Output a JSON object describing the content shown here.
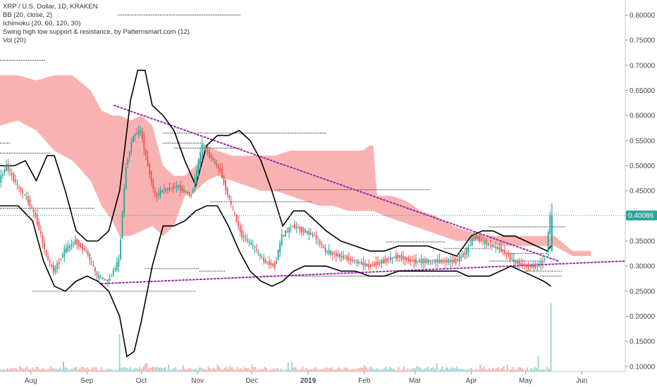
{
  "legend": {
    "line1": "XRP / U.S. Dollar, 1D, KRAKEN",
    "line2": "BB (20, close, 2)",
    "line3": "Ichimoku (20, 60, 120, 30)",
    "line4": "Swing high low support & resistance, by Patternsmart.com (12)",
    "line5": "Vol (20)"
  },
  "colors": {
    "up": "#26a69a",
    "down": "#ef5350",
    "cloud": "#f8a5a5",
    "trend": "#9c27b0",
    "bb": "#000000",
    "current": "#26a69a"
  },
  "chart_data": {
    "type": "candlestick",
    "symbol": "XRP / U.S. Dollar",
    "interval": "1D",
    "exchange": "KRAKEN",
    "ylim": [
      0.09,
      0.83
    ],
    "y_ticks": [
      "0.80000",
      "0.75000",
      "0.70000",
      "0.65000",
      "0.60000",
      "0.55000",
      "0.50000",
      "0.45000",
      "0.40000",
      "0.35000",
      "0.30000",
      "0.25000",
      "0.20000",
      "0.15000",
      "0.10000"
    ],
    "y_tick_values": [
      0.8,
      0.75,
      0.7,
      0.65,
      0.6,
      0.55,
      0.5,
      0.45,
      0.4,
      0.35,
      0.3,
      0.25,
      0.2,
      0.15,
      0.1
    ],
    "x_ticks": [
      {
        "label": "Aug",
        "day": 17
      },
      {
        "label": "Sep",
        "day": 48
      },
      {
        "label": "Oct",
        "day": 78
      },
      {
        "label": "Nov",
        "day": 109
      },
      {
        "label": "Dec",
        "day": 139
      },
      {
        "label": "2019",
        "day": 170,
        "bold": true
      },
      {
        "label": "Feb",
        "day": 201
      },
      {
        "label": "Mar",
        "day": 229
      },
      {
        "label": "Apr",
        "day": 260
      },
      {
        "label": "May",
        "day": 290
      },
      {
        "label": "Jun",
        "day": 321
      }
    ],
    "x_range_days": [
      0,
      345
    ],
    "current_price": 0.40086,
    "current_price_label": "0.40086",
    "price_path": [
      [
        0,
        0.47
      ],
      [
        4,
        0.5
      ],
      [
        10,
        0.46
      ],
      [
        16,
        0.43
      ],
      [
        20,
        0.4
      ],
      [
        26,
        0.32
      ],
      [
        30,
        0.29
      ],
      [
        36,
        0.33
      ],
      [
        42,
        0.35
      ],
      [
        48,
        0.33
      ],
      [
        54,
        0.28
      ],
      [
        60,
        0.27
      ],
      [
        66,
        0.31
      ],
      [
        70,
        0.5
      ],
      [
        74,
        0.56
      ],
      [
        78,
        0.57
      ],
      [
        82,
        0.5
      ],
      [
        86,
        0.44
      ],
      [
        90,
        0.45
      ],
      [
        98,
        0.46
      ],
      [
        106,
        0.44
      ],
      [
        112,
        0.54
      ],
      [
        116,
        0.52
      ],
      [
        122,
        0.49
      ],
      [
        128,
        0.42
      ],
      [
        134,
        0.36
      ],
      [
        140,
        0.34
      ],
      [
        146,
        0.31
      ],
      [
        152,
        0.3
      ],
      [
        156,
        0.36
      ],
      [
        162,
        0.38
      ],
      [
        168,
        0.37
      ],
      [
        174,
        0.36
      ],
      [
        180,
        0.33
      ],
      [
        188,
        0.32
      ],
      [
        196,
        0.31
      ],
      [
        204,
        0.3
      ],
      [
        212,
        0.31
      ],
      [
        220,
        0.32
      ],
      [
        228,
        0.31
      ],
      [
        236,
        0.31
      ],
      [
        244,
        0.31
      ],
      [
        252,
        0.31
      ],
      [
        258,
        0.33
      ],
      [
        262,
        0.36
      ],
      [
        266,
        0.35
      ],
      [
        272,
        0.34
      ],
      [
        278,
        0.33
      ],
      [
        284,
        0.31
      ],
      [
        290,
        0.3
      ],
      [
        296,
        0.3
      ],
      [
        300,
        0.31
      ],
      [
        302,
        0.33
      ],
      [
        304,
        0.40086
      ]
    ],
    "bb_upper": [
      [
        0,
        0.5
      ],
      [
        8,
        0.5
      ],
      [
        14,
        0.51
      ],
      [
        20,
        0.47
      ],
      [
        26,
        0.52
      ],
      [
        30,
        0.52
      ],
      [
        36,
        0.45
      ],
      [
        42,
        0.37
      ],
      [
        48,
        0.35
      ],
      [
        54,
        0.35
      ],
      [
        60,
        0.37
      ],
      [
        66,
        0.45
      ],
      [
        72,
        0.63
      ],
      [
        76,
        0.69
      ],
      [
        80,
        0.69
      ],
      [
        84,
        0.62
      ],
      [
        90,
        0.6
      ],
      [
        96,
        0.57
      ],
      [
        102,
        0.51
      ],
      [
        108,
        0.46
      ],
      [
        114,
        0.54
      ],
      [
        120,
        0.56
      ],
      [
        126,
        0.56
      ],
      [
        132,
        0.57
      ],
      [
        138,
        0.55
      ],
      [
        144,
        0.51
      ],
      [
        150,
        0.45
      ],
      [
        156,
        0.38
      ],
      [
        162,
        0.41
      ],
      [
        168,
        0.41
      ],
      [
        174,
        0.39
      ],
      [
        180,
        0.37
      ],
      [
        188,
        0.35
      ],
      [
        196,
        0.34
      ],
      [
        204,
        0.33
      ],
      [
        212,
        0.33
      ],
      [
        220,
        0.34
      ],
      [
        228,
        0.34
      ],
      [
        236,
        0.34
      ],
      [
        244,
        0.33
      ],
      [
        252,
        0.32
      ],
      [
        260,
        0.36
      ],
      [
        266,
        0.37
      ],
      [
        272,
        0.37
      ],
      [
        278,
        0.36
      ],
      [
        284,
        0.36
      ],
      [
        290,
        0.35
      ],
      [
        296,
        0.34
      ],
      [
        302,
        0.33
      ],
      [
        304,
        0.34
      ]
    ],
    "bb_lower": [
      [
        0,
        0.42
      ],
      [
        10,
        0.42
      ],
      [
        18,
        0.39
      ],
      [
        24,
        0.31
      ],
      [
        30,
        0.26
      ],
      [
        36,
        0.25
      ],
      [
        42,
        0.27
      ],
      [
        48,
        0.28
      ],
      [
        54,
        0.27
      ],
      [
        60,
        0.25
      ],
      [
        66,
        0.2
      ],
      [
        70,
        0.12
      ],
      [
        74,
        0.13
      ],
      [
        78,
        0.19
      ],
      [
        84,
        0.3
      ],
      [
        90,
        0.38
      ],
      [
        96,
        0.38
      ],
      [
        102,
        0.39
      ],
      [
        108,
        0.41
      ],
      [
        114,
        0.42
      ],
      [
        120,
        0.42
      ],
      [
        126,
        0.38
      ],
      [
        132,
        0.33
      ],
      [
        138,
        0.29
      ],
      [
        144,
        0.27
      ],
      [
        150,
        0.26
      ],
      [
        156,
        0.27
      ],
      [
        162,
        0.29
      ],
      [
        168,
        0.3
      ],
      [
        174,
        0.3
      ],
      [
        180,
        0.3
      ],
      [
        188,
        0.29
      ],
      [
        196,
        0.29
      ],
      [
        204,
        0.28
      ],
      [
        212,
        0.28
      ],
      [
        220,
        0.29
      ],
      [
        228,
        0.29
      ],
      [
        236,
        0.29
      ],
      [
        244,
        0.29
      ],
      [
        252,
        0.29
      ],
      [
        258,
        0.28
      ],
      [
        264,
        0.28
      ],
      [
        270,
        0.28
      ],
      [
        276,
        0.29
      ],
      [
        282,
        0.3
      ],
      [
        288,
        0.29
      ],
      [
        294,
        0.28
      ],
      [
        300,
        0.27
      ],
      [
        304,
        0.26
      ]
    ],
    "cloud_top": [
      [
        0,
        0.68
      ],
      [
        10,
        0.68
      ],
      [
        20,
        0.67
      ],
      [
        30,
        0.68
      ],
      [
        40,
        0.68
      ],
      [
        50,
        0.65
      ],
      [
        56,
        0.61
      ],
      [
        62,
        0.6
      ],
      [
        66,
        0.6
      ],
      [
        72,
        0.59
      ],
      [
        78,
        0.6
      ],
      [
        84,
        0.58
      ],
      [
        90,
        0.5
      ],
      [
        96,
        0.48
      ],
      [
        102,
        0.48
      ],
      [
        108,
        0.5
      ],
      [
        114,
        0.54
      ],
      [
        120,
        0.53
      ],
      [
        128,
        0.52
      ],
      [
        136,
        0.52
      ],
      [
        144,
        0.52
      ],
      [
        152,
        0.52
      ],
      [
        160,
        0.53
      ],
      [
        168,
        0.53
      ],
      [
        176,
        0.53
      ],
      [
        184,
        0.53
      ],
      [
        192,
        0.53
      ],
      [
        200,
        0.53
      ],
      [
        204,
        0.54
      ],
      [
        206,
        0.54
      ],
      [
        208,
        0.44
      ],
      [
        216,
        0.44
      ],
      [
        224,
        0.43
      ],
      [
        232,
        0.41
      ],
      [
        240,
        0.4
      ],
      [
        250,
        0.38
      ],
      [
        258,
        0.37
      ],
      [
        268,
        0.36
      ],
      [
        276,
        0.36
      ],
      [
        286,
        0.36
      ],
      [
        296,
        0.36
      ],
      [
        306,
        0.36
      ],
      [
        316,
        0.33
      ],
      [
        326,
        0.33
      ]
    ],
    "cloud_bottom": [
      [
        0,
        0.58
      ],
      [
        10,
        0.59
      ],
      [
        20,
        0.57
      ],
      [
        30,
        0.53
      ],
      [
        40,
        0.51
      ],
      [
        50,
        0.47
      ],
      [
        56,
        0.42
      ],
      [
        62,
        0.39
      ],
      [
        66,
        0.36
      ],
      [
        72,
        0.36
      ],
      [
        78,
        0.37
      ],
      [
        84,
        0.38
      ],
      [
        90,
        0.36
      ],
      [
        96,
        0.38
      ],
      [
        102,
        0.44
      ],
      [
        108,
        0.45
      ],
      [
        114,
        0.47
      ],
      [
        120,
        0.48
      ],
      [
        128,
        0.47
      ],
      [
        136,
        0.46
      ],
      [
        144,
        0.45
      ],
      [
        152,
        0.45
      ],
      [
        160,
        0.44
      ],
      [
        168,
        0.43
      ],
      [
        176,
        0.42
      ],
      [
        184,
        0.42
      ],
      [
        192,
        0.41
      ],
      [
        200,
        0.41
      ],
      [
        206,
        0.41
      ],
      [
        212,
        0.4
      ],
      [
        220,
        0.39
      ],
      [
        228,
        0.38
      ],
      [
        236,
        0.37
      ],
      [
        244,
        0.36
      ],
      [
        252,
        0.35
      ],
      [
        260,
        0.35
      ],
      [
        268,
        0.35
      ],
      [
        276,
        0.34
      ],
      [
        286,
        0.34
      ],
      [
        296,
        0.34
      ],
      [
        306,
        0.34
      ],
      [
        316,
        0.32
      ],
      [
        326,
        0.32
      ]
    ],
    "trendlines": [
      {
        "from": [
          63,
          0.62
        ],
        "to": [
          308,
          0.31
        ]
      },
      {
        "from": [
          56,
          0.265
        ],
        "to": [
          345,
          0.31
        ]
      }
    ],
    "support_resistance": [
      {
        "x1": 65,
        "x2": 133,
        "y": 0.8
      },
      {
        "x1": 0,
        "x2": 25,
        "y": 0.71
      },
      {
        "x1": 0,
        "x2": 6,
        "y": 0.545
      },
      {
        "x1": 0,
        "x2": 28,
        "y": 0.525
      },
      {
        "x1": 90,
        "x2": 180,
        "y": 0.565
      },
      {
        "x1": 90,
        "x2": 112,
        "y": 0.545
      },
      {
        "x1": 96,
        "x2": 134,
        "y": 0.535
      },
      {
        "x1": 152,
        "x2": 237,
        "y": 0.452
      },
      {
        "x1": 116,
        "x2": 172,
        "y": 0.428
      },
      {
        "x1": 0,
        "x2": 52,
        "y": 0.415
      },
      {
        "x1": 80,
        "x2": 110,
        "y": 0.295
      },
      {
        "x1": 110,
        "x2": 124,
        "y": 0.29
      },
      {
        "x1": 18,
        "x2": 108,
        "y": 0.25
      },
      {
        "x1": 213,
        "x2": 246,
        "y": 0.348
      },
      {
        "x1": 270,
        "x2": 312,
        "y": 0.378
      },
      {
        "x1": 245,
        "x2": 270,
        "y": 0.335
      },
      {
        "x1": 280,
        "x2": 300,
        "y": 0.325
      },
      {
        "x1": 270,
        "x2": 300,
        "y": 0.31
      },
      {
        "x1": 145,
        "x2": 255,
        "y": 0.28
      },
      {
        "x1": 290,
        "x2": 310,
        "y": 0.29
      },
      {
        "x1": 298,
        "x2": 310,
        "y": 0.28
      }
    ],
    "volume_spikes": [
      {
        "day": 66,
        "v": 0.12
      },
      {
        "day": 297,
        "v": 0.05
      },
      {
        "day": 304,
        "v": 0.22
      }
    ]
  }
}
